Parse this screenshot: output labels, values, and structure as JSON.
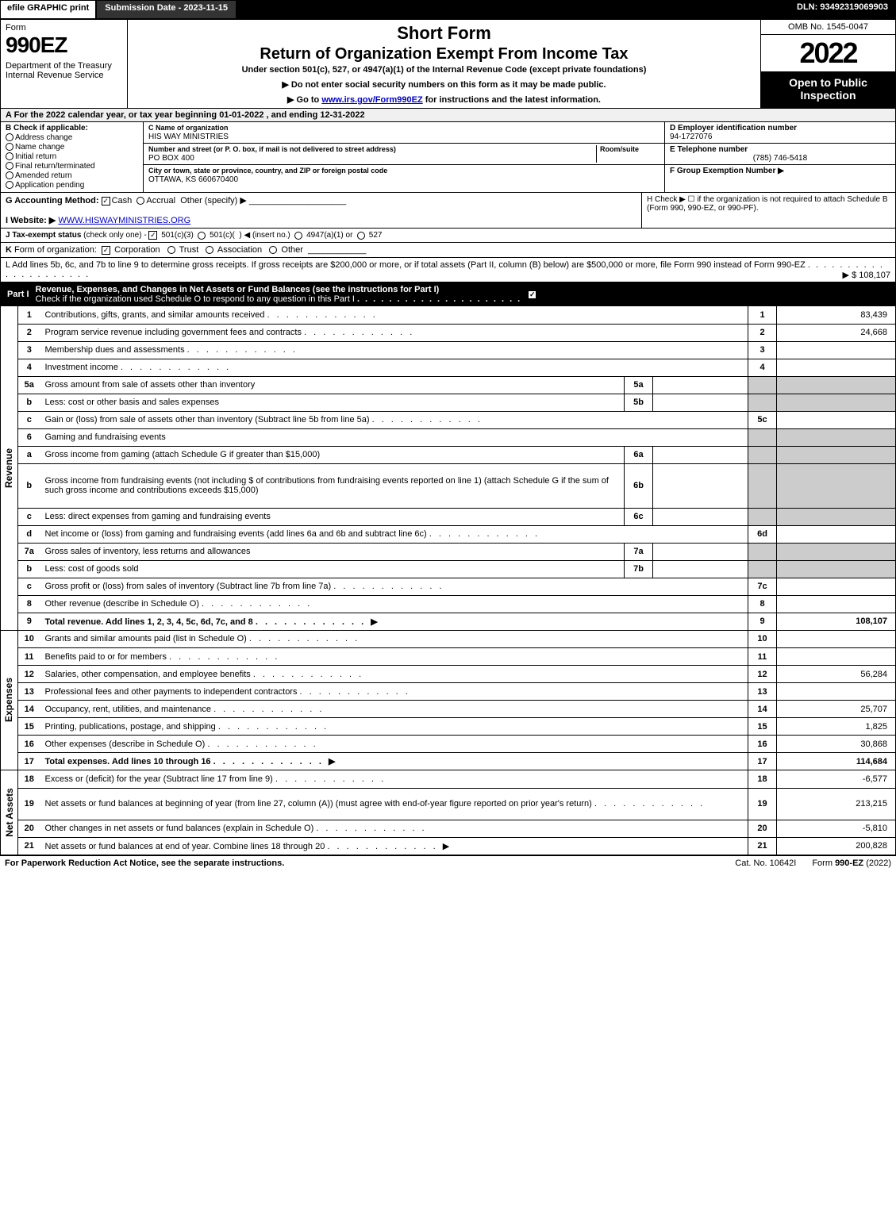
{
  "colors": {
    "black": "#000000",
    "white": "#ffffff",
    "shaded": "#cccccc",
    "header_bg": "#f0f0f0",
    "link": "#0000cc"
  },
  "top": {
    "efile": "efile GRAPHIC print",
    "submission": "Submission Date - 2023-11-15",
    "dln": "DLN: 93492319069903"
  },
  "header": {
    "form_label": "Form",
    "form_number": "990EZ",
    "dept": "Department of the Treasury\nInternal Revenue Service",
    "short_form": "Short Form",
    "title": "Return of Organization Exempt From Income Tax",
    "subtitle": "Under section 501(c), 527, or 4947(a)(1) of the Internal Revenue Code (except private foundations)",
    "instr1": "▶ Do not enter social security numbers on this form as it may be made public.",
    "instr2": "▶ Go to www.irs.gov/Form990EZ for instructions and the latest information.",
    "omb": "OMB No. 1545-0047",
    "year": "2022",
    "open": "Open to Public Inspection"
  },
  "a": {
    "text": "A  For the 2022 calendar year, or tax year beginning 01-01-2022 , and ending 12-31-2022"
  },
  "b": {
    "label": "B  Check if applicable:",
    "items": [
      "Address change",
      "Name change",
      "Initial return",
      "Final return/terminated",
      "Amended return",
      "Application pending"
    ]
  },
  "c": {
    "name_label": "C Name of organization",
    "name": "HIS WAY MINISTRIES",
    "street_label": "Number and street (or P. O. box, if mail is not delivered to street address)",
    "room_label": "Room/suite",
    "street": "PO BOX 400",
    "city_label": "City or town, state or province, country, and ZIP or foreign postal code",
    "city": "OTTAWA, KS  660670400"
  },
  "d": {
    "label": "D Employer identification number",
    "value": "94-1727076"
  },
  "e": {
    "label": "E Telephone number",
    "value": "(785) 746-5418"
  },
  "f": {
    "label": "F Group Exemption Number  ▶",
    "value": ""
  },
  "g": {
    "label": "G Accounting Method:",
    "cash": "Cash",
    "accrual": "Accrual",
    "other": "Other (specify) ▶"
  },
  "h": {
    "text": "H  Check ▶  ☐  if the organization is not required to attach Schedule B (Form 990, 990-EZ, or 990-PF)."
  },
  "i": {
    "label": "I Website: ▶",
    "value": "WWW.HISWAYMINISTRIES.ORG"
  },
  "j": {
    "text": "J Tax-exempt status (check only one) - ☑ 501(c)(3)  ☐ 501(c)(  ) ◀ (insert no.)  ☐ 4947(a)(1) or  ☐ 527"
  },
  "k": {
    "text": "K Form of organization:  ☑ Corporation   ☐ Trust   ☐ Association   ☐ Other"
  },
  "l": {
    "text": "L Add lines 5b, 6c, and 7b to line 9 to determine gross receipts. If gross receipts are $200,000 or more, or if total assets (Part II, column (B) below) are $500,000 or more, file Form 990 instead of Form 990-EZ",
    "amount": "▶ $ 108,107"
  },
  "part1": {
    "label": "Part I",
    "title": "Revenue, Expenses, and Changes in Net Assets or Fund Balances (see the instructions for Part I)",
    "check_text": "Check if the organization used Schedule O to respond to any question in this Part I",
    "checked": true
  },
  "revenue": {
    "side": "Revenue",
    "rows": [
      {
        "ln": "1",
        "desc": "Contributions, gifts, grants, and similar amounts received",
        "num": "1",
        "amt": "83,439"
      },
      {
        "ln": "2",
        "desc": "Program service revenue including government fees and contracts",
        "num": "2",
        "amt": "24,668"
      },
      {
        "ln": "3",
        "desc": "Membership dues and assessments",
        "num": "3",
        "amt": ""
      },
      {
        "ln": "4",
        "desc": "Investment income",
        "num": "4",
        "amt": ""
      },
      {
        "ln": "5a",
        "desc": "Gross amount from sale of assets other than inventory",
        "mini": "5a",
        "mini_val": "",
        "shaded_num": true
      },
      {
        "ln": "b",
        "desc": "Less: cost or other basis and sales expenses",
        "mini": "5b",
        "mini_val": "",
        "shaded_num": true
      },
      {
        "ln": "c",
        "desc": "Gain or (loss) from sale of assets other than inventory (Subtract line 5b from line 5a)",
        "num": "5c",
        "amt": ""
      },
      {
        "ln": "6",
        "desc": "Gaming and fundraising events",
        "header": true,
        "shaded_num": true
      },
      {
        "ln": "a",
        "desc": "Gross income from gaming (attach Schedule G if greater than $15,000)",
        "mini": "6a",
        "mini_val": "",
        "shaded_num": true
      },
      {
        "ln": "b",
        "desc": "Gross income from fundraising events (not including $                    of contributions from fundraising events reported on line 1) (attach Schedule G if the sum of such gross income and contributions exceeds $15,000)",
        "mini": "6b",
        "mini_val": "",
        "shaded_num": true,
        "tall": true
      },
      {
        "ln": "c",
        "desc": "Less: direct expenses from gaming and fundraising events",
        "mini": "6c",
        "mini_val": "",
        "shaded_num": true
      },
      {
        "ln": "d",
        "desc": "Net income or (loss) from gaming and fundraising events (add lines 6a and 6b and subtract line 6c)",
        "num": "6d",
        "amt": ""
      },
      {
        "ln": "7a",
        "desc": "Gross sales of inventory, less returns and allowances",
        "mini": "7a",
        "mini_val": "",
        "shaded_num": true
      },
      {
        "ln": "b",
        "desc": "Less: cost of goods sold",
        "mini": "7b",
        "mini_val": "",
        "shaded_num": true
      },
      {
        "ln": "c",
        "desc": "Gross profit or (loss) from sales of inventory (Subtract line 7b from line 7a)",
        "num": "7c",
        "amt": ""
      },
      {
        "ln": "8",
        "desc": "Other revenue (describe in Schedule O)",
        "num": "8",
        "amt": ""
      },
      {
        "ln": "9",
        "desc": "Total revenue. Add lines 1, 2, 3, 4, 5c, 6d, 7c, and 8",
        "num": "9",
        "amt": "108,107",
        "bold": true,
        "arrow": true
      }
    ]
  },
  "expenses": {
    "side": "Expenses",
    "rows": [
      {
        "ln": "10",
        "desc": "Grants and similar amounts paid (list in Schedule O)",
        "num": "10",
        "amt": ""
      },
      {
        "ln": "11",
        "desc": "Benefits paid to or for members",
        "num": "11",
        "amt": ""
      },
      {
        "ln": "12",
        "desc": "Salaries, other compensation, and employee benefits",
        "num": "12",
        "amt": "56,284"
      },
      {
        "ln": "13",
        "desc": "Professional fees and other payments to independent contractors",
        "num": "13",
        "amt": ""
      },
      {
        "ln": "14",
        "desc": "Occupancy, rent, utilities, and maintenance",
        "num": "14",
        "amt": "25,707"
      },
      {
        "ln": "15",
        "desc": "Printing, publications, postage, and shipping",
        "num": "15",
        "amt": "1,825"
      },
      {
        "ln": "16",
        "desc": "Other expenses (describe in Schedule O)",
        "num": "16",
        "amt": "30,868"
      },
      {
        "ln": "17",
        "desc": "Total expenses. Add lines 10 through 16",
        "num": "17",
        "amt": "114,684",
        "bold": true,
        "arrow": true
      }
    ]
  },
  "netassets": {
    "side": "Net Assets",
    "rows": [
      {
        "ln": "18",
        "desc": "Excess or (deficit) for the year (Subtract line 17 from line 9)",
        "num": "18",
        "amt": "-6,577"
      },
      {
        "ln": "19",
        "desc": "Net assets or fund balances at beginning of year (from line 27, column (A)) (must agree with end-of-year figure reported on prior year's return)",
        "num": "19",
        "amt": "213,215",
        "tall": true
      },
      {
        "ln": "20",
        "desc": "Other changes in net assets or fund balances (explain in Schedule O)",
        "num": "20",
        "amt": "-5,810"
      },
      {
        "ln": "21",
        "desc": "Net assets or fund balances at end of year. Combine lines 18 through 20",
        "num": "21",
        "amt": "200,828",
        "arrow": true
      }
    ]
  },
  "footer": {
    "left": "For Paperwork Reduction Act Notice, see the separate instructions.",
    "mid": "Cat. No. 10642I",
    "right": "Form 990-EZ (2022)"
  }
}
